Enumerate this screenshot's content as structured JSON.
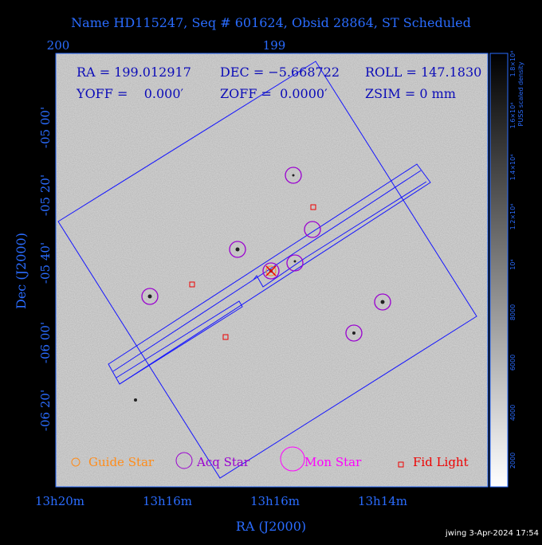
{
  "title": "Name HD115247, Seq # 601624, Obsid 28864, ST Scheduled",
  "top_axis": [
    "200",
    "199"
  ],
  "left_axis": [
    "-05 00'",
    "-05 20'",
    "-05 40'",
    "-06 00'",
    "-06 20'"
  ],
  "bottom_axis": [
    "13h20m",
    "13h16m",
    "13h16m",
    "13h14m"
  ],
  "x_label": "RA (J2000)",
  "y_label": "Dec (J2000)",
  "info": [
    [
      "RA = 199.012917",
      "DEC = −5.668722",
      "ROLL = 147.1830"
    ],
    [
      "YOFF =    0.000′",
      "ZOFF =  0.0000′",
      "ZSIM = 0 mm"
    ]
  ],
  "legend": [
    "Guide Star",
    "Acq Star",
    "Mon Star",
    "Fid Light"
  ],
  "colorbar": {
    "title": "PUSS scaled density",
    "labels": [
      "1.8×10⁴",
      "1.6×10⁴",
      "1.4×10⁴",
      "1.2×10⁴",
      "10⁴",
      "8000",
      "6000",
      "4000",
      "2000"
    ]
  },
  "footer": "jwing  3-Apr-2024 17:54"
}
